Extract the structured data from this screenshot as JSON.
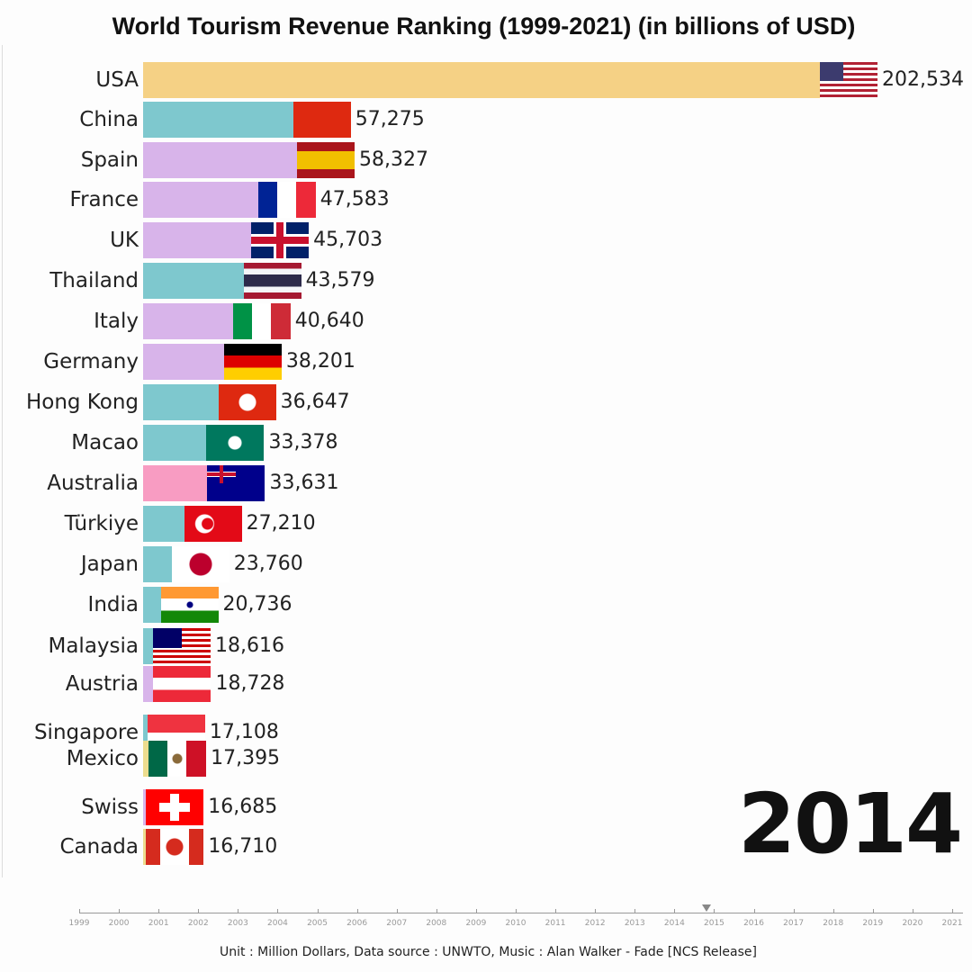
{
  "chart_data": {
    "type": "bar",
    "orientation": "horizontal",
    "title": "World Tourism Revenue Ranking (1999-2021) (in billions of USD)",
    "current_year": "2014",
    "categories": [
      "USA",
      "China",
      "Spain",
      "France",
      "UK",
      "Thailand",
      "Italy",
      "Germany",
      "Hong Kong",
      "Macao",
      "Australia",
      "Türkiye",
      "Japan",
      "India",
      "Malaysia",
      "Austria",
      "Singapore",
      "Mexico",
      "Swiss",
      "Canada"
    ],
    "values": [
      202534,
      57275,
      58327,
      47583,
      45703,
      43579,
      40640,
      38201,
      36647,
      33378,
      33631,
      27210,
      23760,
      20736,
      18616,
      18728,
      17108,
      17395,
      16685,
      16710
    ],
    "value_labels": [
      "202,534",
      "57,275",
      "58,327",
      "47,583",
      "45,703",
      "43,579",
      "40,640",
      "38,201",
      "36,647",
      "33,378",
      "33,631",
      "27,210",
      "23,760",
      "20,736",
      "18,616",
      "18,728",
      "17,108",
      "17,395",
      "16,685",
      "16,710"
    ],
    "bar_colors": [
      "#f5d185",
      "#7ec8ce",
      "#d8b4ea",
      "#d8b4ea",
      "#d8b4ea",
      "#7ec8ce",
      "#d8b4ea",
      "#d8b4ea",
      "#7ec8ce",
      "#7ec8ce",
      "#f89cc2",
      "#7ec8ce",
      "#7ec8ce",
      "#7ec8ce",
      "#7ec8ce",
      "#d8b4ea",
      "#7ec8ce",
      "#ecdc8e",
      "#d8b4ea",
      "#ecdc8e"
    ],
    "flag_icons": [
      "us-flag-icon",
      "cn-flag-icon",
      "es-flag-icon",
      "fr-flag-icon",
      "gb-flag-icon",
      "th-flag-icon",
      "it-flag-icon",
      "de-flag-icon",
      "hk-flag-icon",
      "mo-flag-icon",
      "au-flag-icon",
      "tr-flag-icon",
      "jp-flag-icon",
      "in-flag-icon",
      "my-flag-icon",
      "at-flag-icon",
      "sg-flag-icon",
      "mx-flag-icon",
      "ch-flag-icon",
      "ca-flag-icon"
    ],
    "timeline": {
      "years": [
        "1999",
        "2000",
        "2001",
        "2002",
        "2003",
        "2004",
        "2005",
        "2006",
        "2007",
        "2008",
        "2009",
        "2010",
        "2011",
        "2012",
        "2013",
        "2014",
        "2015",
        "2016",
        "2017",
        "2018",
        "2019",
        "2020",
        "2021"
      ],
      "position": 2014.8
    },
    "footer": "Unit : Million Dollars, Data source : UNWTO, Music : Alan Walker - Fade [NCS Release]"
  }
}
